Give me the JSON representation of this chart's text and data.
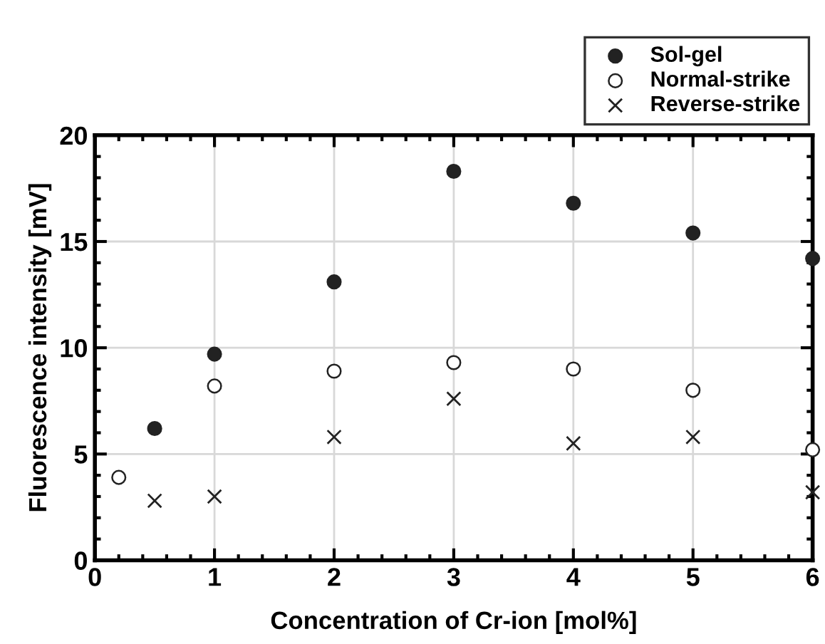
{
  "chart_data": {
    "type": "scatter",
    "xlabel": "Concentration of Cr-ion [mol%]",
    "ylabel": "Fluorescence intensity [mV]",
    "xlim": [
      0,
      6
    ],
    "xticks": [
      0,
      1,
      2,
      3,
      4,
      5,
      6
    ],
    "ylim": [
      0,
      20
    ],
    "yticks": [
      0,
      5,
      10,
      15,
      20
    ],
    "grid": true,
    "legend": "top right",
    "series": [
      {
        "name": "Sol-gel",
        "color": "#222222",
        "marker": "circle",
        "x": [
          0.5,
          1,
          2,
          3,
          4,
          5,
          6
        ],
        "values": [
          6.2,
          9.7,
          13.1,
          18.3,
          16.8,
          15.4,
          14.2
        ]
      },
      {
        "name": "Normal-strike",
        "color": "#222222",
        "marker": "open circle",
        "x": [
          0.2,
          1,
          2,
          3,
          4,
          5,
          6
        ],
        "values": [
          3.9,
          8.2,
          8.9,
          9.3,
          9.0,
          8.0,
          5.2
        ]
      },
      {
        "name": "Reverse-strike",
        "color": "#222222",
        "marker": "cross",
        "x": [
          0.5,
          1,
          2,
          3,
          4,
          5,
          6
        ],
        "values": [
          2.8,
          3.0,
          5.8,
          7.6,
          5.5,
          5.8,
          3.2
        ]
      }
    ]
  }
}
